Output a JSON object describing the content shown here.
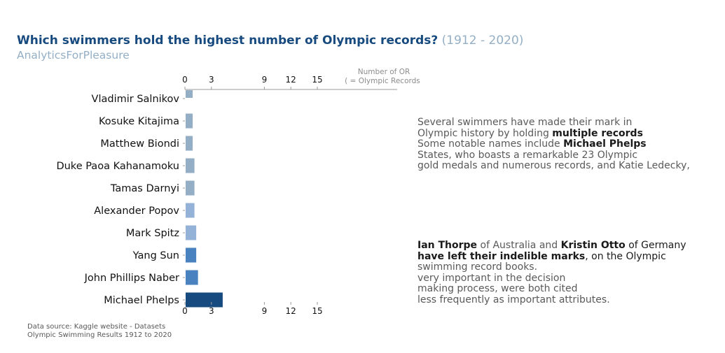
{
  "header": {
    "title": "Which swimmers hold the highest number of Olympic records?",
    "title_years": "(1912 - 2020)",
    "brand": "AnalyticsForPleasure"
  },
  "chart_data": {
    "type": "bar",
    "orientation": "horizontal",
    "categories": [
      "Vladimir Salnikov",
      "Kosuke Kitajima",
      "Matthew Biondi",
      "Duke Paoa Kahanamoku",
      "Tamas Darnyi",
      "Alexander Popov",
      "Mark Spitz",
      "Yang Sun",
      "John Phillips Naber",
      "Michael Phelps"
    ],
    "values": [
      0.8,
      0.8,
      0.8,
      1,
      1,
      1,
      1.2,
      1.2,
      1.4,
      4.2
    ],
    "colors": [
      "#94afc5",
      "#94afc5",
      "#94afc5",
      "#94afc5",
      "#94afc5",
      "#94b2d8",
      "#94b2d8",
      "#4a81bf",
      "#4a81bf",
      "#174a7e"
    ],
    "x_ticks": [
      "0",
      "3",
      "9",
      "12",
      "15"
    ],
    "x_tick_values": [
      0,
      3,
      9,
      12,
      15
    ],
    "xlim": [
      0,
      16
    ],
    "axis_title_line1": "Number of OR",
    "axis_title_line2": "( = Olympic Records)",
    "grid": false
  },
  "annotations": {
    "panel1": {
      "line1": "Several swimmers have made their mark in",
      "line2_pre": "Olympic history by holding ",
      "line2_bold": "multiple records",
      "line3_pre": "Some notable names include ",
      "line3_bold": "Michael Phelps",
      "line4": "States, who boasts a remarkable 23 Olympic",
      "line5": "gold medals and numerous records, and Katie Ledecky,"
    },
    "panel2": {
      "line1_b1": "Ian Thorpe",
      "line1_mid": " of Australia and ",
      "line1_b2": "Kristin Otto",
      "line1_end": " of Germany",
      "line2_bold": "have left their indelible marks",
      "line2_end": ", on the Olympic",
      "line3": "swimming record books.",
      "line4": "very important in the decision",
      "line5": "making process, were both cited",
      "line6": "less frequently as important attributes."
    }
  },
  "footer": {
    "source_line1": "Data source: Kaggle website -  Datasets",
    "source_line2": "Olympic Swimming Results 1912 to 2020"
  }
}
